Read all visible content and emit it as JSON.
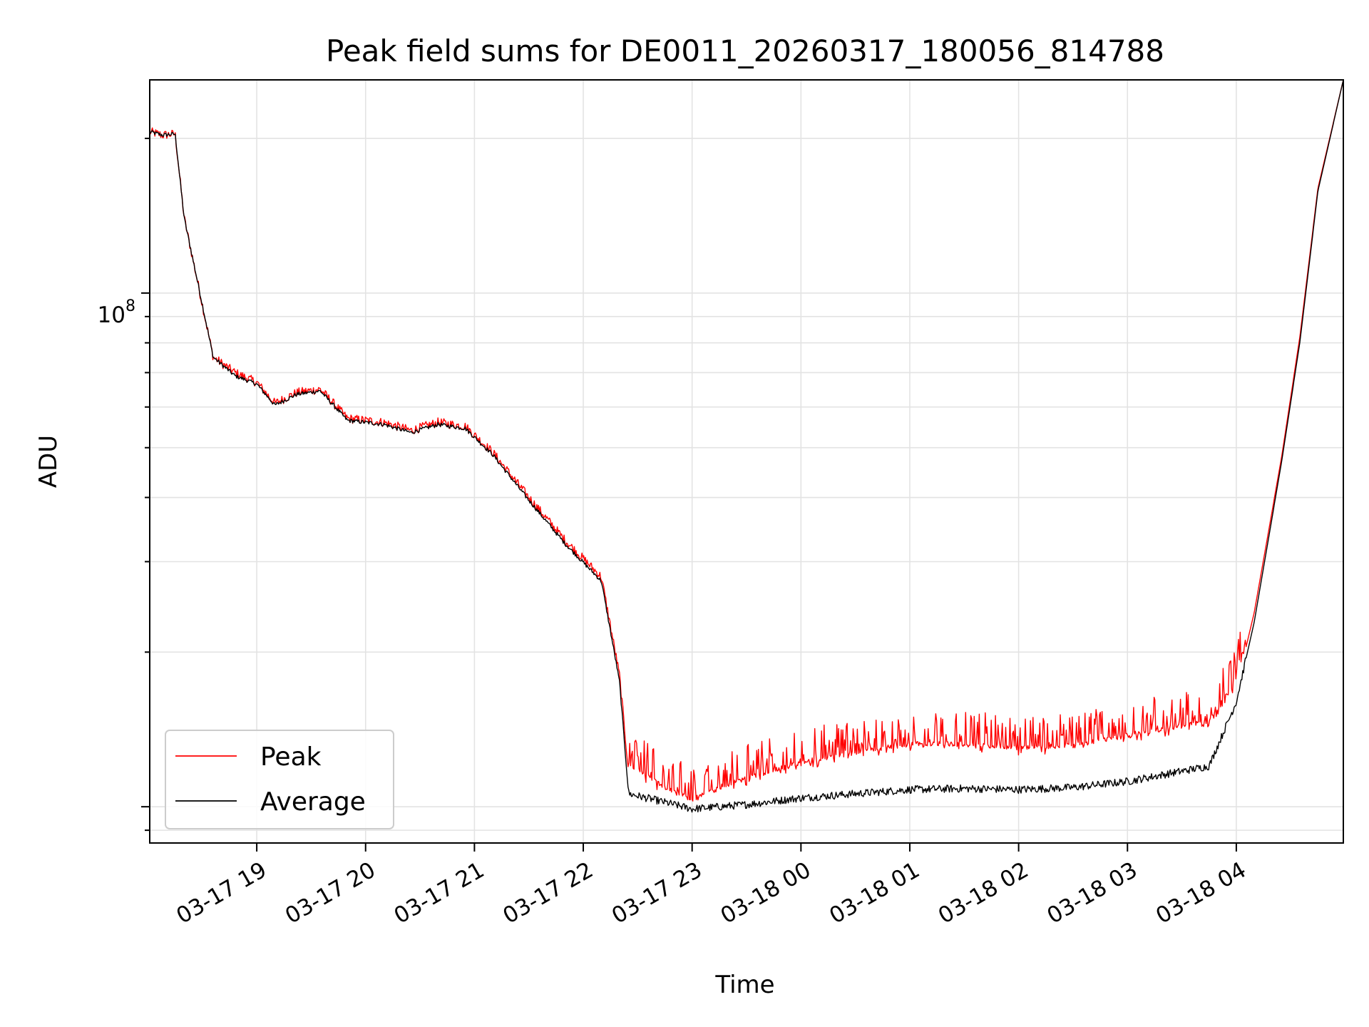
{
  "chart_data": {
    "type": "line",
    "title": "Peak field sums for DE0011_20260317_180056_814788",
    "xlabel": "Time",
    "ylabel": "ADU",
    "x_ticks": [
      "03-17 19",
      "03-17 20",
      "03-17 21",
      "03-17 22",
      "03-17 23",
      "03-18 00",
      "03-18 01",
      "03-18 02",
      "03-18 03",
      "03-18 04"
    ],
    "y_scale": "log",
    "ylim": [
      8500000,
      260000000
    ],
    "y_tick_label": "10",
    "y_tick_exponent": "8",
    "grid": true,
    "legend_position": "lower-left",
    "series": [
      {
        "name": "Peak",
        "color": "#ff0000",
        "points": [
          [
            "03-17 18:01",
            206000000
          ],
          [
            "03-17 18:08",
            203000000
          ],
          [
            "03-17 18:15",
            204000000
          ],
          [
            "03-17 18:20",
            140000000
          ],
          [
            "03-17 18:30",
            95000000
          ],
          [
            "03-17 18:36",
            75000000
          ],
          [
            "03-17 18:48",
            70000000
          ],
          [
            "03-17 19:00",
            67000000
          ],
          [
            "03-17 19:10",
            61000000
          ],
          [
            "03-17 19:22",
            64000000
          ],
          [
            "03-17 19:35",
            65000000
          ],
          [
            "03-17 19:50",
            57000000
          ],
          [
            "03-17 20:10",
            56000000
          ],
          [
            "03-17 20:25",
            54000000
          ],
          [
            "03-17 20:40",
            56000000
          ],
          [
            "03-17 20:55",
            55000000
          ],
          [
            "03-17 21:10",
            49000000
          ],
          [
            "03-17 21:30",
            40000000
          ],
          [
            "03-17 21:50",
            33000000
          ],
          [
            "03-17 22:10",
            28000000
          ],
          [
            "03-17 22:20",
            18000000
          ],
          [
            "03-17 22:25",
            11700000
          ],
          [
            "03-17 22:45",
            10500000
          ],
          [
            "03-17 23:00",
            10000000
          ],
          [
            "03-17 23:30",
            11000000
          ],
          [
            "03-18 00:00",
            11800000
          ],
          [
            "03-18 00:30",
            12300000
          ],
          [
            "03-18 01:00",
            12800000
          ],
          [
            "03-18 01:30",
            12800000
          ],
          [
            "03-18 02:00",
            12600000
          ],
          [
            "03-18 02:30",
            12700000
          ],
          [
            "03-18 03:00",
            13300000
          ],
          [
            "03-18 03:45",
            14200000
          ],
          [
            "03-18 04:00",
            17000000
          ],
          [
            "03-18 04:10",
            24000000
          ],
          [
            "03-18 04:25",
            48000000
          ],
          [
            "03-18 04:35",
            82000000
          ],
          [
            "03-18 04:45",
            160000000
          ],
          [
            "03-18 04:59",
            260000000
          ]
        ]
      },
      {
        "name": "Average",
        "color": "#000000",
        "points": [
          [
            "03-17 18:01",
            206000000
          ],
          [
            "03-17 18:08",
            203000000
          ],
          [
            "03-17 18:15",
            204000000
          ],
          [
            "03-17 18:20",
            140000000
          ],
          [
            "03-17 18:30",
            95000000
          ],
          [
            "03-17 18:36",
            75000000
          ],
          [
            "03-17 18:48",
            69000000
          ],
          [
            "03-17 19:00",
            66500000
          ],
          [
            "03-17 19:10",
            60500000
          ],
          [
            "03-17 19:22",
            63500000
          ],
          [
            "03-17 19:35",
            64500000
          ],
          [
            "03-17 19:50",
            56500000
          ],
          [
            "03-17 20:10",
            55500000
          ],
          [
            "03-17 20:25",
            53500000
          ],
          [
            "03-17 20:40",
            55500000
          ],
          [
            "03-17 20:55",
            54500000
          ],
          [
            "03-17 21:10",
            48500000
          ],
          [
            "03-17 21:30",
            39500000
          ],
          [
            "03-17 21:50",
            32500000
          ],
          [
            "03-17 22:10",
            27500000
          ],
          [
            "03-17 22:20",
            17500000
          ],
          [
            "03-17 22:25",
            10600000
          ],
          [
            "03-17 22:45",
            10200000
          ],
          [
            "03-17 23:00",
            9900000
          ],
          [
            "03-17 23:30",
            10100000
          ],
          [
            "03-18 00:00",
            10400000
          ],
          [
            "03-18 00:30",
            10600000
          ],
          [
            "03-18 01:00",
            10800000
          ],
          [
            "03-18 01:30",
            10850000
          ],
          [
            "03-18 02:00",
            10800000
          ],
          [
            "03-18 02:30",
            10900000
          ],
          [
            "03-18 03:00",
            11200000
          ],
          [
            "03-18 03:45",
            12000000
          ],
          [
            "03-18 04:00",
            16000000
          ],
          [
            "03-18 04:10",
            23000000
          ],
          [
            "03-18 04:25",
            47000000
          ],
          [
            "03-18 04:35",
            80000000
          ],
          [
            "03-18 04:45",
            158000000
          ],
          [
            "03-18 04:59",
            260000000
          ]
        ]
      }
    ]
  }
}
